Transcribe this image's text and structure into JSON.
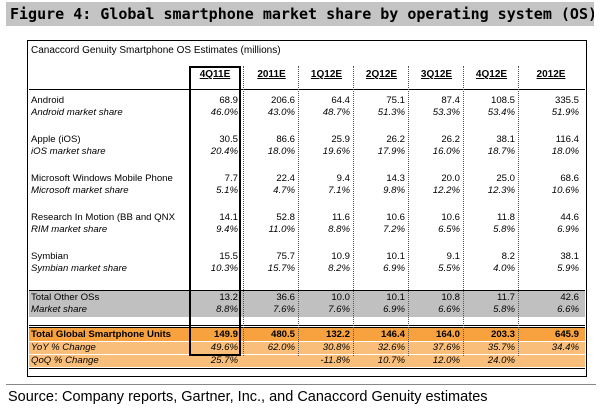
{
  "figure_title": "Figure 4: Global smartphone market share by operating system (OS)",
  "table_title": "Canaccord Genuity Smartphone OS Estimates (millions)",
  "columns": [
    "4Q11E",
    "2011E",
    "1Q12E",
    "2Q12E",
    "3Q12E",
    "4Q12E",
    "2012E"
  ],
  "rows": [
    {
      "name": "Android",
      "units": [
        "68.9",
        "206.6",
        "64.4",
        "75.1",
        "87.4",
        "108.5",
        "335.5"
      ],
      "share_label": "Android market share",
      "share": [
        "46.0%",
        "43.0%",
        "48.7%",
        "51.3%",
        "53.3%",
        "53.4%",
        "51.9%"
      ]
    },
    {
      "name": "Apple (iOS)",
      "units": [
        "30.5",
        "86.6",
        "25.9",
        "26.2",
        "26.2",
        "38.1",
        "116.4"
      ],
      "share_label": "iOS market share",
      "share": [
        "20.4%",
        "18.0%",
        "19.6%",
        "17.9%",
        "16.0%",
        "18.7%",
        "18.0%"
      ]
    },
    {
      "name": "Microsoft Windows Mobile Phone",
      "units": [
        "7.7",
        "22.4",
        "9.4",
        "14.3",
        "20.0",
        "25.0",
        "68.6"
      ],
      "share_label": "Microsoft market share",
      "share": [
        "5.1%",
        "4.7%",
        "7.1%",
        "9.8%",
        "12.2%",
        "12.3%",
        "10.6%"
      ]
    },
    {
      "name": "Research In Motion (BB and QNX",
      "units": [
        "14.1",
        "52.8",
        "11.6",
        "10.6",
        "10.6",
        "11.8",
        "44.6"
      ],
      "share_label": "RIM market share",
      "share": [
        "9.4%",
        "11.0%",
        "8.8%",
        "7.2%",
        "6.5%",
        "5.8%",
        "6.9%"
      ]
    },
    {
      "name": "Symbian",
      "units": [
        "15.5",
        "75.7",
        "10.9",
        "10.1",
        "9.1",
        "8.2",
        "38.1"
      ],
      "share_label": "Symbian market share",
      "share": [
        "10.3%",
        "15.7%",
        "8.2%",
        "6.9%",
        "5.5%",
        "4.0%",
        "5.9%"
      ]
    }
  ],
  "other": {
    "name": "Total Other OSs",
    "units": [
      "13.2",
      "36.6",
      "10.0",
      "10.1",
      "10.8",
      "11.7",
      "42.6"
    ],
    "share_label": "Market share",
    "share": [
      "8.8%",
      "7.6%",
      "7.6%",
      "6.9%",
      "6.6%",
      "5.8%",
      "6.6%"
    ]
  },
  "total": {
    "name": "Total Global Smartphone Units",
    "units": [
      "149.9",
      "480.5",
      "132.2",
      "146.4",
      "164.0",
      "203.3",
      "645.9"
    ]
  },
  "yoy": {
    "name": "YoY % Change",
    "values": [
      "49.6%",
      "62.0%",
      "30.8%",
      "32.6%",
      "37.6%",
      "35.7%",
      "34.4%"
    ]
  },
  "qoq": {
    "name": "QoQ % Change",
    "values": [
      "25.7%",
      "",
      "-11.8%",
      "10.7%",
      "12.0%",
      "24.0%",
      ""
    ]
  },
  "source": "Source: Company reports, Gartner, Inc., and Canaccord Genuity estimates",
  "colors": {
    "highlight_gray": "#c0c0c0",
    "total_orange": "#f7a23e",
    "change_orange": "#f9bf7a"
  }
}
